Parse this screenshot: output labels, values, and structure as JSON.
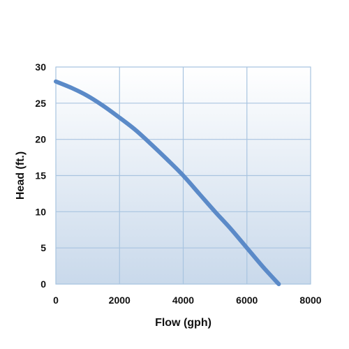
{
  "chart_data": {
    "type": "line",
    "title": "",
    "xlabel": "Flow (gph)",
    "ylabel": "Head (ft.)",
    "xlim": [
      0,
      8000
    ],
    "ylim": [
      0,
      30
    ],
    "xticks": [
      0,
      2000,
      4000,
      6000,
      8000
    ],
    "yticks": [
      0,
      5,
      10,
      15,
      20,
      25,
      30
    ],
    "grid": true,
    "legend": "none",
    "series": [
      {
        "color": "#5b8ac8",
        "x": [
          0,
          500,
          1000,
          1500,
          2000,
          2500,
          3000,
          3500,
          4000,
          4500,
          5000,
          5500,
          6000,
          6500,
          7000
        ],
        "y": [
          28,
          27.1,
          26,
          24.6,
          23,
          21.3,
          19.3,
          17.2,
          15,
          12.5,
          10,
          7.6,
          5,
          2.4,
          0
        ]
      }
    ],
    "colors": {
      "plot_bg_top": "#ffffff",
      "plot_bg_bottom": "#c9d9eb",
      "grid": "#a8c4e0",
      "border": "#8fb0d6"
    }
  }
}
